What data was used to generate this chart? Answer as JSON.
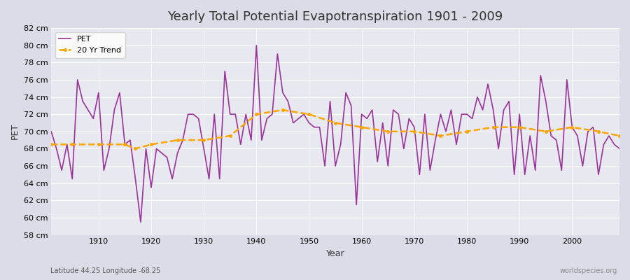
{
  "title": "Yearly Total Potential Evapotranspiration 1901 - 2009",
  "xlabel": "Year",
  "ylabel": "PET",
  "subtitle": "Latitude 44.25 Longitude -68.25",
  "watermark": "worldspecies.org",
  "pet_color": "#993399",
  "trend_color": "#FFA500",
  "bg_color": "#e8e8ee",
  "plot_bg_color": "#e8e8f0",
  "grid_color": "#ffffff",
  "ylim": [
    58,
    82
  ],
  "yticks": [
    58,
    60,
    62,
    64,
    66,
    68,
    70,
    72,
    74,
    76,
    78,
    80,
    82
  ],
  "years": [
    1901,
    1902,
    1903,
    1904,
    1905,
    1906,
    1907,
    1908,
    1909,
    1910,
    1911,
    1912,
    1913,
    1914,
    1915,
    1916,
    1917,
    1918,
    1919,
    1920,
    1921,
    1922,
    1923,
    1924,
    1925,
    1926,
    1927,
    1928,
    1929,
    1930,
    1931,
    1932,
    1933,
    1934,
    1935,
    1936,
    1937,
    1938,
    1939,
    1940,
    1941,
    1942,
    1943,
    1944,
    1945,
    1946,
    1947,
    1948,
    1949,
    1950,
    1951,
    1952,
    1953,
    1954,
    1955,
    1956,
    1957,
    1958,
    1959,
    1960,
    1961,
    1962,
    1963,
    1964,
    1965,
    1966,
    1967,
    1968,
    1969,
    1970,
    1971,
    1972,
    1973,
    1974,
    1975,
    1976,
    1977,
    1978,
    1979,
    1980,
    1981,
    1982,
    1983,
    1984,
    1985,
    1986,
    1987,
    1988,
    1989,
    1990,
    1991,
    1992,
    1993,
    1994,
    1995,
    1996,
    1997,
    1998,
    1999,
    2000,
    2001,
    2002,
    2003,
    2004,
    2005,
    2006,
    2007,
    2008,
    2009
  ],
  "pet_values": [
    70.0,
    68.0,
    65.5,
    68.5,
    64.5,
    76.0,
    73.5,
    72.5,
    71.5,
    74.5,
    65.5,
    68.0,
    72.5,
    74.5,
    68.5,
    69.0,
    64.5,
    59.5,
    68.0,
    63.5,
    68.0,
    67.5,
    67.0,
    64.5,
    67.5,
    69.0,
    72.0,
    72.0,
    71.5,
    68.0,
    64.5,
    72.0,
    64.5,
    77.0,
    72.0,
    72.0,
    68.5,
    72.0,
    69.0,
    80.0,
    69.0,
    71.5,
    72.0,
    79.0,
    74.5,
    73.5,
    71.0,
    71.5,
    72.0,
    71.0,
    70.5,
    70.5,
    66.0,
    73.5,
    66.0,
    68.5,
    74.5,
    73.0,
    61.5,
    72.0,
    71.5,
    72.5,
    66.5,
    71.0,
    66.0,
    72.5,
    72.0,
    68.0,
    71.5,
    70.5,
    65.0,
    72.0,
    65.5,
    69.0,
    72.0,
    70.0,
    72.5,
    68.5,
    72.0,
    72.0,
    71.5,
    74.0,
    72.5,
    75.5,
    72.5,
    68.0,
    72.5,
    73.5,
    65.0,
    72.0,
    65.0,
    69.5,
    65.5,
    76.5,
    73.5,
    69.5,
    69.0,
    65.5,
    76.0,
    70.5,
    69.5,
    66.0,
    70.0,
    70.5,
    65.0,
    68.5,
    69.5,
    68.5,
    68.0
  ],
  "trend_years": [
    1901,
    1905,
    1910,
    1915,
    1917,
    1920,
    1925,
    1930,
    1935,
    1940,
    1945,
    1950,
    1955,
    1960,
    1965,
    1970,
    1975,
    1980,
    1985,
    1990,
    1995,
    2000,
    2005,
    2009
  ],
  "trend_values": [
    68.5,
    68.5,
    68.5,
    68.5,
    68.0,
    68.5,
    69.0,
    69.0,
    69.5,
    72.0,
    72.5,
    72.0,
    71.0,
    70.5,
    70.0,
    70.0,
    69.5,
    70.0,
    70.5,
    70.5,
    70.0,
    70.5,
    70.0,
    69.5
  ]
}
